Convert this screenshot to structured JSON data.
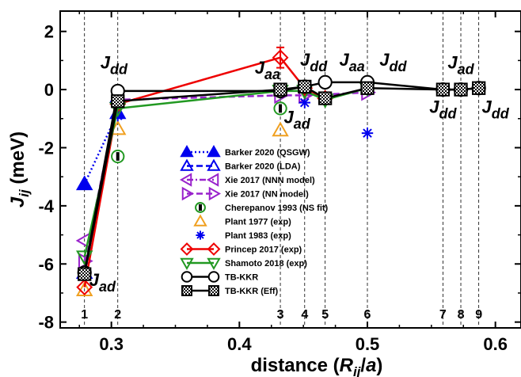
{
  "chart_data": {
    "type": "scatter",
    "xlabel": "distance (R_ij/a)",
    "ylabel": "J_ij (meV)",
    "xlim": [
      0.26,
      0.62
    ],
    "ylim": [
      -8.2,
      2.7
    ],
    "x_ticks": [
      0.3,
      0.4,
      0.5,
      0.6
    ],
    "x_tick_labels": [
      "0.3",
      "0.4",
      "0.5",
      "0.6"
    ],
    "y_ticks": [
      -8,
      -6,
      -4,
      -2,
      0,
      2
    ],
    "y_tick_labels": [
      "-8",
      "-6",
      "-4",
      "-2",
      "0",
      "2"
    ],
    "grid": false,
    "legend_position": "center",
    "shells": [
      {
        "label": "1",
        "x": 0.279
      },
      {
        "label": "2",
        "x": 0.305
      },
      {
        "label": "3",
        "x": 0.432
      },
      {
        "label": "4",
        "x": 0.451
      },
      {
        "label": "5",
        "x": 0.467
      },
      {
        "label": "6",
        "x": 0.5
      },
      {
        "label": "7",
        "x": 0.559
      },
      {
        "label": "8",
        "x": 0.573
      },
      {
        "label": "9",
        "x": 0.587
      }
    ],
    "annotations": [
      {
        "main": "J",
        "sub": "dd",
        "x": 0.302,
        "y": 0.72
      },
      {
        "main": "J",
        "sub": "aa",
        "x": 0.422,
        "y": 0.55
      },
      {
        "main": "J",
        "sub": "dd",
        "x": 0.458,
        "y": 0.82
      },
      {
        "main": "J",
        "sub": "aa",
        "x": 0.488,
        "y": 0.82
      },
      {
        "main": "J",
        "sub": "dd",
        "x": 0.52,
        "y": 0.82
      },
      {
        "main": "J",
        "sub": "ad",
        "x": 0.573,
        "y": 0.72
      },
      {
        "main": "J",
        "sub": "ad",
        "x": 0.445,
        "y": -1.15
      },
      {
        "main": "J",
        "sub": "dd",
        "x": 0.559,
        "y": -0.8
      },
      {
        "main": "J",
        "sub": "dd",
        "x": 0.6,
        "y": -0.8
      },
      {
        "main": "J",
        "sub": "ad",
        "x": 0.293,
        "y": -6.75
      }
    ],
    "series": [
      {
        "name": "Barker 2020 (QSGW)",
        "color": "#0000ee",
        "marker": "triangle-up",
        "filled": true,
        "line": "dotted",
        "x": [
          0.279,
          0.305
        ],
        "y": [
          -3.25,
          -0.8
        ]
      },
      {
        "name": "Barker 2020 (LDA)",
        "color": "#0000ee",
        "marker": "triangle-up",
        "filled": false,
        "line": "dashed",
        "x": [
          0.279,
          0.305
        ],
        "y": [
          -6.3,
          -0.25
        ]
      },
      {
        "name": "Xie 2017 (NNN model)",
        "color": "#9922cc",
        "marker": "triangle-left",
        "filled": false,
        "line": "dashdot",
        "x": [
          0.279
        ],
        "y": [
          -5.2
        ]
      },
      {
        "name": "Xie 2017 (NN model)",
        "color": "#9922cc",
        "marker": "triangle-right",
        "filled": false,
        "line": "dashed",
        "x": [
          0.279,
          0.305,
          0.432,
          0.451,
          0.5
        ],
        "y": [
          -5.9,
          -0.35,
          -0.2,
          -0.2,
          -0.1
        ]
      },
      {
        "name": "Cherepanov 1993 (NS fit)",
        "color": "#229922",
        "marker": "circle-bar",
        "filled": false,
        "line": "none",
        "x": [
          0.305,
          0.432
        ],
        "y": [
          -2.3,
          -0.65
        ]
      },
      {
        "name": "Plant 1977 (exp)",
        "color": "#f0a020",
        "marker": "triangle-up",
        "filled": false,
        "line": "none",
        "x": [
          0.279,
          0.305,
          0.432
        ],
        "y": [
          -6.9,
          -1.35,
          -1.4
        ]
      },
      {
        "name": "Plant 1983 (exp)",
        "color": "#0000ee",
        "marker": "asterisk",
        "filled": true,
        "line": "none",
        "x": [
          0.305,
          0.451,
          0.5
        ],
        "y": [
          -0.9,
          -0.45,
          -1.5
        ]
      },
      {
        "name": "Princep 2017 (exp)",
        "color": "#ee0000",
        "marker": "diamond",
        "filled": false,
        "line": "solid",
        "x": [
          0.279,
          0.305,
          0.432,
          0.451,
          0.467
        ],
        "y": [
          -6.8,
          -0.5,
          1.1,
          0.05,
          -0.3
        ]
      },
      {
        "name": "Shamoto 2018 (exp)",
        "color": "#229922",
        "marker": "triangle-down",
        "filled": false,
        "line": "solid",
        "x": [
          0.279,
          0.305,
          0.432,
          0.451,
          0.467,
          0.5
        ],
        "y": [
          -5.75,
          -0.65,
          -0.05,
          -0.05,
          -0.35,
          0.05
        ]
      },
      {
        "name": "TB-KKR",
        "color": "#000000",
        "marker": "circle",
        "filled": false,
        "line": "solid",
        "x": [
          0.279,
          0.305,
          0.432,
          0.451,
          0.467,
          0.5,
          0.559,
          0.573,
          0.587
        ],
        "y": [
          -6.3,
          -0.05,
          -0.05,
          0.1,
          0.25,
          0.25,
          0.0,
          0.0,
          0.05
        ]
      },
      {
        "name": "TB-KKR (Eff)",
        "color": "#000000",
        "marker": "square-check",
        "filled": false,
        "line": "solid",
        "x": [
          0.279,
          0.305,
          0.432,
          0.451,
          0.467,
          0.5,
          0.559,
          0.573,
          0.587
        ],
        "y": [
          -6.35,
          -0.4,
          0.0,
          0.1,
          -0.3,
          0.05,
          0.0,
          0.0,
          0.05
        ]
      }
    ]
  }
}
